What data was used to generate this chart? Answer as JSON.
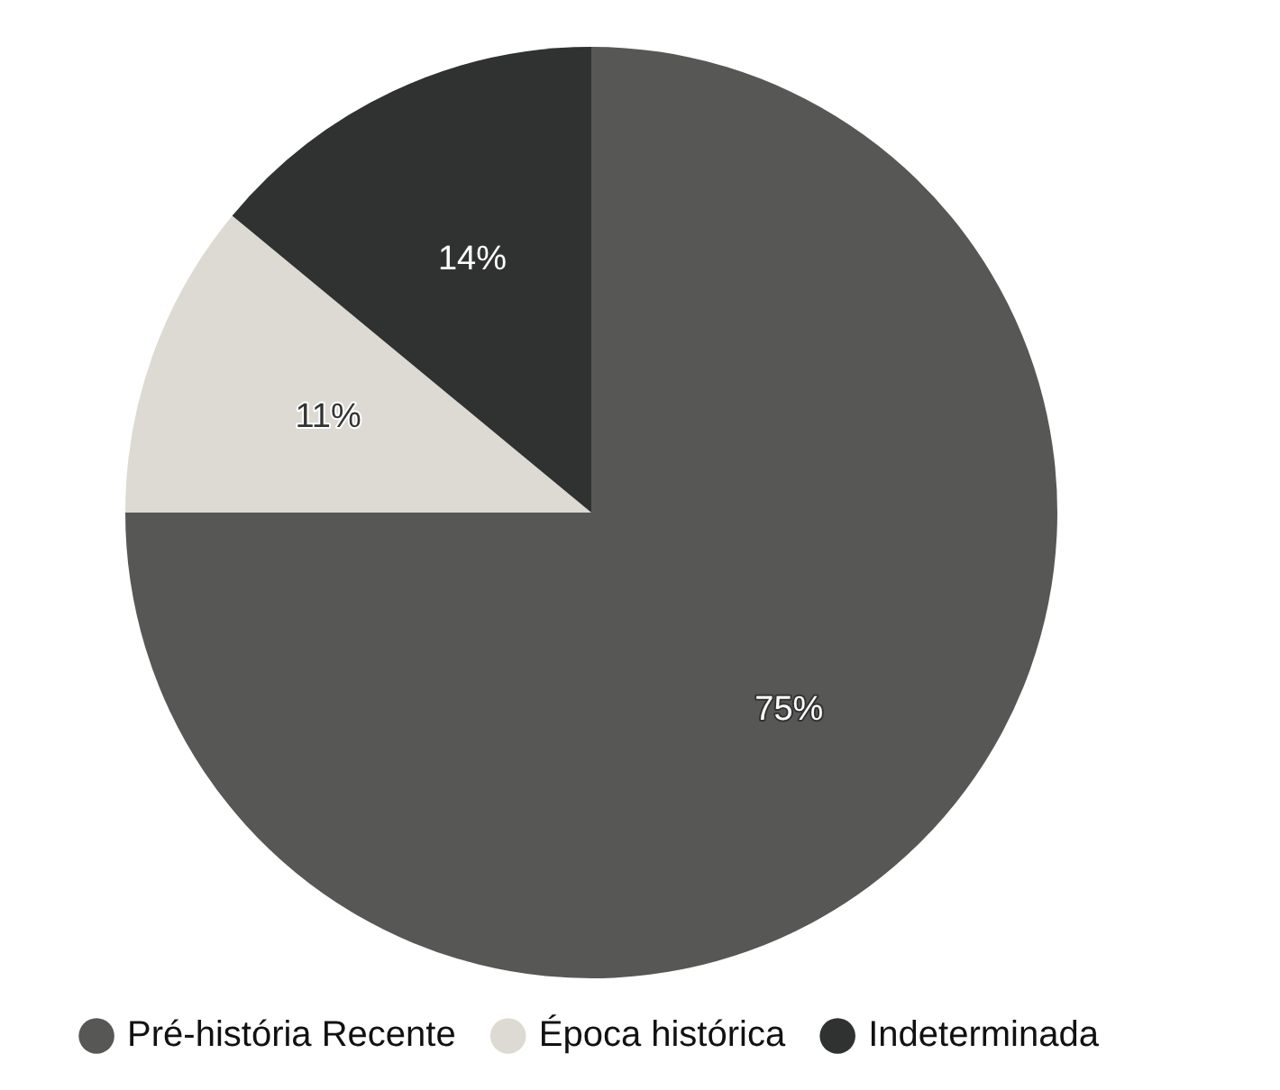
{
  "chart_data": {
    "type": "pie",
    "categories": [
      "Pré-história Recente",
      "Época histórica",
      "Indeterminada"
    ],
    "values": [
      75,
      11,
      14
    ],
    "colors": [
      "#575856",
      "#dcdad3",
      "#2f3230"
    ],
    "value_labels": [
      "75%",
      "11%",
      "14%"
    ],
    "legend": "bottom"
  }
}
